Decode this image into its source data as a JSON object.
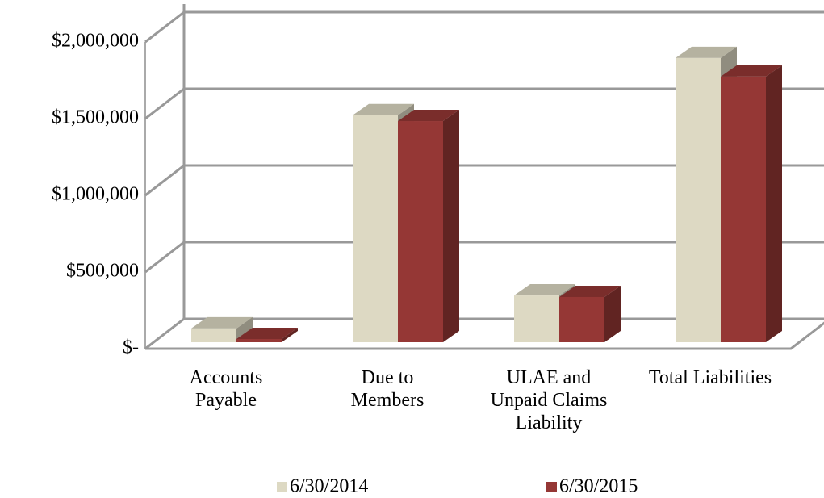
{
  "chart_data": {
    "type": "bar3d",
    "categories": [
      "Accounts Payable",
      "Due to Members",
      "ULAE and Unpaid Claims Liability",
      "Total Liabilities"
    ],
    "series": [
      {
        "name": "6/30/2014",
        "color": "#ddd9c3",
        "values": [
          90000,
          1480000,
          305000,
          1853000
        ]
      },
      {
        "name": "6/30/2015",
        "color": "#953735",
        "values": [
          21000,
          1442000,
          295000,
          1732000
        ]
      }
    ],
    "ylim": [
      0,
      2000000
    ],
    "yticks": [
      {
        "value": 0,
        "label": "$-"
      },
      {
        "value": 500000,
        "label": "$500,000"
      },
      {
        "value": 1000000,
        "label": "$1,000,000"
      },
      {
        "value": 1500000,
        "label": "$1,500,000"
      },
      {
        "value": 2000000,
        "label": "$2,000,000"
      }
    ],
    "grid": true,
    "legend": "bottom"
  }
}
